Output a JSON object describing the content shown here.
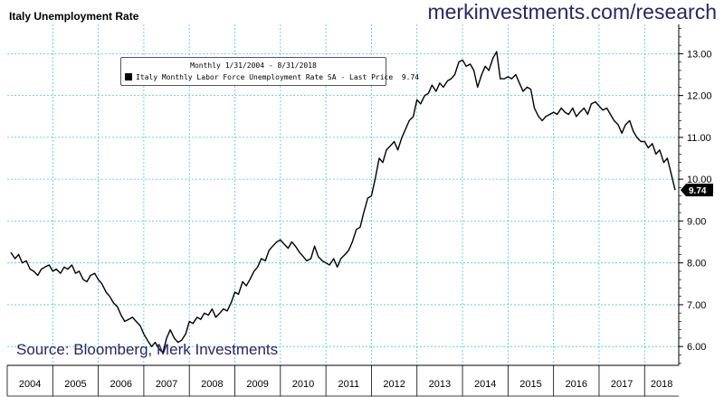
{
  "chart_data": {
    "type": "line",
    "title": "Italy Unemployment Rate",
    "watermark": "merkinvestments.com/research",
    "source": "Source: Bloomberg, Merk Investments",
    "legend": {
      "period": "Monthly 1/31/2004 - 8/31/2018",
      "series_label": "Italy Monthly Labor Force Unemployment Rate SA - Last Price",
      "last_price": "9.74"
    },
    "last_value_label": "9.74",
    "x_ticks": [
      "2004",
      "2005",
      "2006",
      "2007",
      "2008",
      "2009",
      "2010",
      "2011",
      "2012",
      "2013",
      "2014",
      "2015",
      "2016",
      "2017",
      "2018"
    ],
    "y_ticks": [
      "6.00",
      "7.00",
      "8.00",
      "9.00",
      "10.00",
      "11.00",
      "12.00",
      "13.00"
    ],
    "xlim": [
      2004.0,
      2018.75
    ],
    "ylim": [
      5.55,
      13.7
    ],
    "grid": true,
    "line_color": "#000000",
    "grid_color": "#3ec8e6",
    "series": [
      {
        "name": "Italy Monthly Labor Force Unemployment Rate SA",
        "points": [
          [
            2004.08,
            8.25
          ],
          [
            2004.17,
            8.1
          ],
          [
            2004.25,
            8.2
          ],
          [
            2004.33,
            8.0
          ],
          [
            2004.42,
            8.05
          ],
          [
            2004.5,
            7.85
          ],
          [
            2004.58,
            7.8
          ],
          [
            2004.67,
            7.7
          ],
          [
            2004.75,
            7.85
          ],
          [
            2004.83,
            7.9
          ],
          [
            2004.92,
            7.95
          ],
          [
            2005.0,
            7.8
          ],
          [
            2005.08,
            7.85
          ],
          [
            2005.17,
            7.75
          ],
          [
            2005.25,
            7.9
          ],
          [
            2005.33,
            7.85
          ],
          [
            2005.42,
            7.95
          ],
          [
            2005.5,
            7.75
          ],
          [
            2005.58,
            7.8
          ],
          [
            2005.67,
            7.6
          ],
          [
            2005.75,
            7.55
          ],
          [
            2005.83,
            7.7
          ],
          [
            2005.92,
            7.75
          ],
          [
            2006.0,
            7.6
          ],
          [
            2006.08,
            7.5
          ],
          [
            2006.17,
            7.3
          ],
          [
            2006.25,
            7.2
          ],
          [
            2006.33,
            7.05
          ],
          [
            2006.42,
            6.95
          ],
          [
            2006.5,
            6.75
          ],
          [
            2006.58,
            6.6
          ],
          [
            2006.67,
            6.65
          ],
          [
            2006.75,
            6.7
          ],
          [
            2006.83,
            6.6
          ],
          [
            2006.92,
            6.5
          ],
          [
            2007.0,
            6.3
          ],
          [
            2007.08,
            6.15
          ],
          [
            2007.17,
            6.0
          ],
          [
            2007.25,
            6.1
          ],
          [
            2007.33,
            5.95
          ],
          [
            2007.42,
            5.85
          ],
          [
            2007.5,
            6.2
          ],
          [
            2007.58,
            6.4
          ],
          [
            2007.67,
            6.2
          ],
          [
            2007.75,
            6.1
          ],
          [
            2007.83,
            6.15
          ],
          [
            2007.92,
            6.3
          ],
          [
            2008.0,
            6.6
          ],
          [
            2008.08,
            6.55
          ],
          [
            2008.17,
            6.7
          ],
          [
            2008.25,
            6.65
          ],
          [
            2008.33,
            6.8
          ],
          [
            2008.42,
            6.75
          ],
          [
            2008.5,
            6.9
          ],
          [
            2008.58,
            6.7
          ],
          [
            2008.67,
            6.8
          ],
          [
            2008.75,
            6.9
          ],
          [
            2008.83,
            6.85
          ],
          [
            2008.92,
            7.05
          ],
          [
            2009.0,
            7.3
          ],
          [
            2009.08,
            7.25
          ],
          [
            2009.17,
            7.55
          ],
          [
            2009.25,
            7.45
          ],
          [
            2009.33,
            7.6
          ],
          [
            2009.42,
            7.8
          ],
          [
            2009.5,
            7.9
          ],
          [
            2009.58,
            8.1
          ],
          [
            2009.67,
            8.05
          ],
          [
            2009.75,
            8.3
          ],
          [
            2009.83,
            8.4
          ],
          [
            2009.92,
            8.5
          ],
          [
            2010.0,
            8.55
          ],
          [
            2010.08,
            8.45
          ],
          [
            2010.17,
            8.35
          ],
          [
            2010.25,
            8.5
          ],
          [
            2010.33,
            8.4
          ],
          [
            2010.42,
            8.25
          ],
          [
            2010.5,
            8.15
          ],
          [
            2010.58,
            8.05
          ],
          [
            2010.67,
            8.1
          ],
          [
            2010.75,
            8.4
          ],
          [
            2010.83,
            8.15
          ],
          [
            2010.92,
            8.05
          ],
          [
            2011.0,
            8.0
          ],
          [
            2011.08,
            7.95
          ],
          [
            2011.17,
            8.1
          ],
          [
            2011.25,
            7.9
          ],
          [
            2011.33,
            8.1
          ],
          [
            2011.42,
            8.2
          ],
          [
            2011.5,
            8.3
          ],
          [
            2011.58,
            8.5
          ],
          [
            2011.67,
            8.8
          ],
          [
            2011.75,
            8.85
          ],
          [
            2011.83,
            9.2
          ],
          [
            2011.92,
            9.55
          ],
          [
            2012.0,
            9.6
          ],
          [
            2012.08,
            10.0
          ],
          [
            2012.17,
            10.5
          ],
          [
            2012.25,
            10.4
          ],
          [
            2012.33,
            10.7
          ],
          [
            2012.42,
            10.8
          ],
          [
            2012.5,
            10.9
          ],
          [
            2012.58,
            10.7
          ],
          [
            2012.67,
            11.0
          ],
          [
            2012.75,
            11.2
          ],
          [
            2012.83,
            11.4
          ],
          [
            2012.92,
            11.5
          ],
          [
            2013.0,
            11.9
          ],
          [
            2013.08,
            11.8
          ],
          [
            2013.17,
            12.0
          ],
          [
            2013.25,
            12.05
          ],
          [
            2013.33,
            12.25
          ],
          [
            2013.42,
            12.1
          ],
          [
            2013.5,
            12.3
          ],
          [
            2013.58,
            12.2
          ],
          [
            2013.67,
            12.35
          ],
          [
            2013.75,
            12.4
          ],
          [
            2013.83,
            12.5
          ],
          [
            2013.92,
            12.8
          ],
          [
            2014.0,
            12.85
          ],
          [
            2014.08,
            12.7
          ],
          [
            2014.17,
            12.75
          ],
          [
            2014.25,
            12.6
          ],
          [
            2014.33,
            12.2
          ],
          [
            2014.42,
            12.5
          ],
          [
            2014.5,
            12.7
          ],
          [
            2014.58,
            12.6
          ],
          [
            2014.67,
            12.9
          ],
          [
            2014.75,
            13.05
          ],
          [
            2014.83,
            12.4
          ],
          [
            2014.92,
            12.4
          ],
          [
            2015.0,
            12.45
          ],
          [
            2015.08,
            12.4
          ],
          [
            2015.17,
            12.5
          ],
          [
            2015.25,
            12.3
          ],
          [
            2015.33,
            12.1
          ],
          [
            2015.42,
            12.2
          ],
          [
            2015.5,
            12.15
          ],
          [
            2015.58,
            11.7
          ],
          [
            2015.67,
            11.5
          ],
          [
            2015.75,
            11.4
          ],
          [
            2015.83,
            11.5
          ],
          [
            2015.92,
            11.55
          ],
          [
            2016.0,
            11.6
          ],
          [
            2016.08,
            11.55
          ],
          [
            2016.17,
            11.7
          ],
          [
            2016.25,
            11.6
          ],
          [
            2016.33,
            11.55
          ],
          [
            2016.42,
            11.7
          ],
          [
            2016.5,
            11.5
          ],
          [
            2016.58,
            11.6
          ],
          [
            2016.67,
            11.7
          ],
          [
            2016.75,
            11.55
          ],
          [
            2016.83,
            11.8
          ],
          [
            2016.92,
            11.85
          ],
          [
            2017.0,
            11.75
          ],
          [
            2017.08,
            11.65
          ],
          [
            2017.17,
            11.7
          ],
          [
            2017.25,
            11.55
          ],
          [
            2017.33,
            11.4
          ],
          [
            2017.42,
            11.3
          ],
          [
            2017.5,
            11.1
          ],
          [
            2017.58,
            11.3
          ],
          [
            2017.67,
            11.4
          ],
          [
            2017.75,
            11.15
          ],
          [
            2017.83,
            11.0
          ],
          [
            2017.92,
            10.9
          ],
          [
            2018.0,
            10.9
          ],
          [
            2018.08,
            10.75
          ],
          [
            2018.17,
            10.85
          ],
          [
            2018.25,
            10.6
          ],
          [
            2018.33,
            10.7
          ],
          [
            2018.42,
            10.4
          ],
          [
            2018.5,
            10.5
          ],
          [
            2018.58,
            10.15
          ],
          [
            2018.67,
            9.74
          ]
        ]
      }
    ]
  }
}
